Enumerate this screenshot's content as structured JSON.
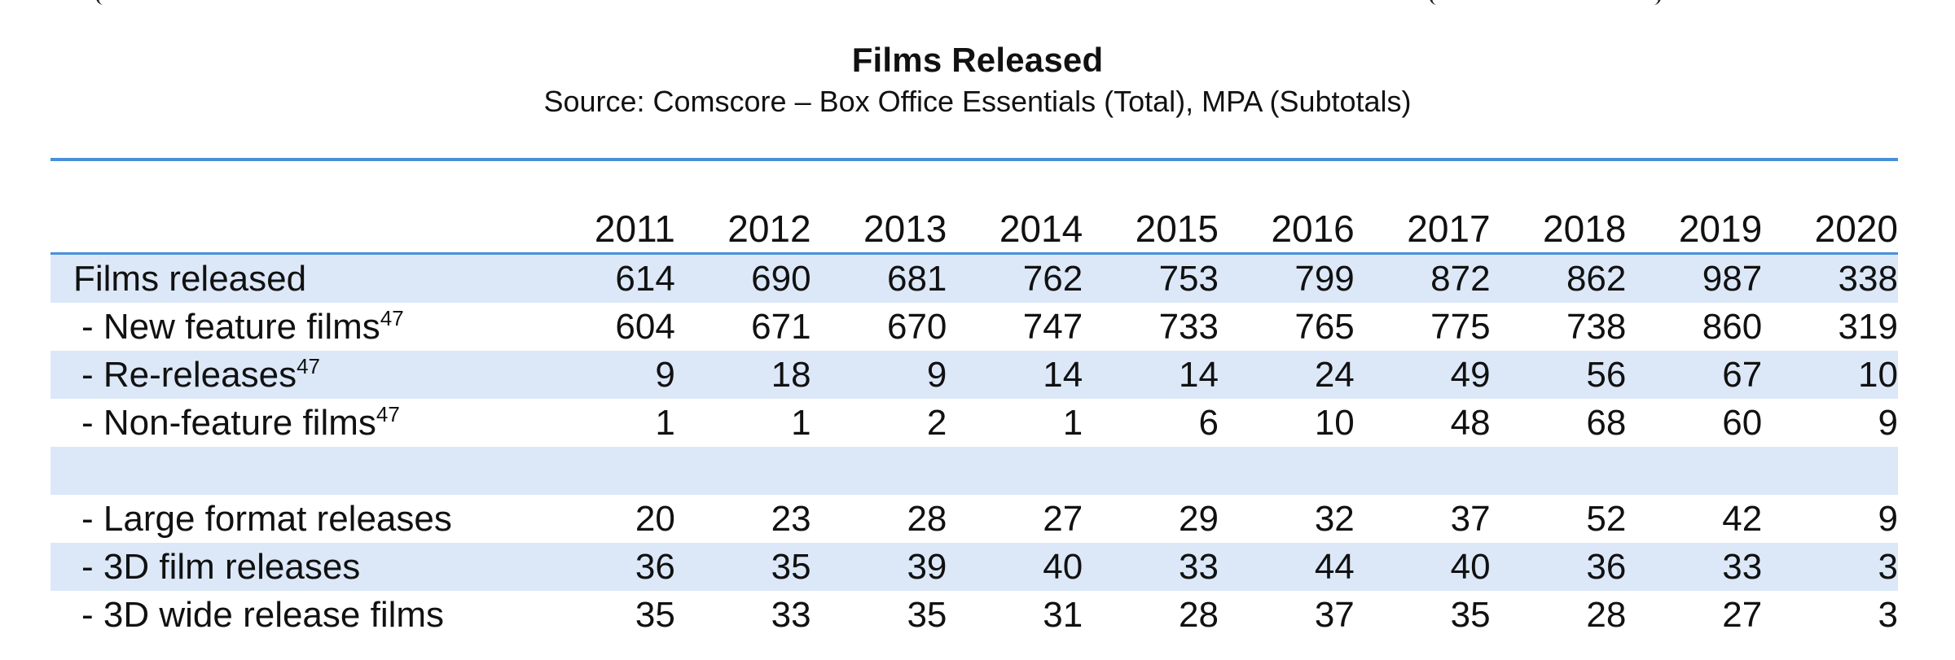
{
  "chart_data": {
    "type": "table",
    "title": "Films Released",
    "subtitle": "Source: Comscore – Box Office Essentials (Total), MPA (Subtotals)",
    "columns": [
      "2011",
      "2012",
      "2013",
      "2014",
      "2015",
      "2016",
      "2017",
      "2018",
      "2019",
      "2020"
    ],
    "rows": [
      {
        "label": "Films released",
        "footnote": "",
        "indent": false,
        "values": [
          "614",
          "690",
          "681",
          "762",
          "753",
          "799",
          "872",
          "862",
          "987",
          "338"
        ]
      },
      {
        "label": " - New feature films",
        "footnote": "47",
        "indent": true,
        "values": [
          "604",
          "671",
          "670",
          "747",
          "733",
          "765",
          "775",
          "738",
          "860",
          "319"
        ]
      },
      {
        "label": " - Re-releases",
        "footnote": "47",
        "indent": true,
        "values": [
          "9",
          "18",
          "9",
          "14",
          "14",
          "24",
          "49",
          "56",
          "67",
          "10"
        ]
      },
      {
        "label": " - Non-feature films",
        "footnote": "47",
        "indent": true,
        "values": [
          "1",
          "1",
          "2",
          "1",
          "6",
          "10",
          "48",
          "68",
          "60",
          "9"
        ]
      },
      {
        "label": "",
        "footnote": "",
        "indent": false,
        "values": [
          "",
          "",
          "",
          "",
          "",
          "",
          "",
          "",
          "",
          ""
        ]
      },
      {
        "label": " - Large format releases",
        "footnote": "",
        "indent": true,
        "values": [
          "20",
          "23",
          "28",
          "27",
          "29",
          "32",
          "37",
          "52",
          "42",
          "9"
        ]
      },
      {
        "label": " - 3D film releases",
        "footnote": "",
        "indent": true,
        "values": [
          "36",
          "35",
          "39",
          "40",
          "33",
          "44",
          "40",
          "36",
          "33",
          "3"
        ]
      },
      {
        "label": " - 3D wide release films",
        "footnote": "",
        "indent": true,
        "values": [
          "35",
          "33",
          "35",
          "31",
          "28",
          "37",
          "35",
          "28",
          "27",
          "3"
        ]
      }
    ],
    "colors": {
      "accent_rule": "#4a90d9",
      "shaded_row": "#dce8f8",
      "text": "#111111"
    }
  }
}
